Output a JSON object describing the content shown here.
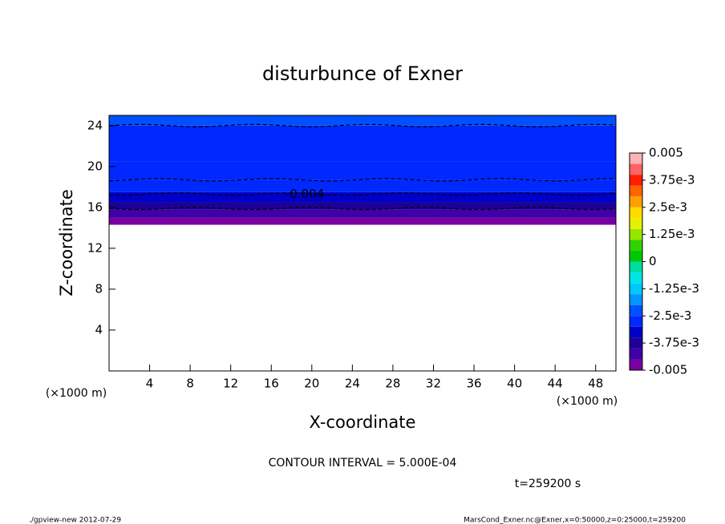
{
  "chart_data": {
    "type": "contour",
    "title": "disturbunce of Exner",
    "x_label": "X-coordinate",
    "y_label": "Z-coordinate",
    "x_unit": "(×1000 m)",
    "y_unit": "(×1000 m)",
    "xlim": [
      0,
      50
    ],
    "xticks": [
      4,
      8,
      12,
      16,
      20,
      24,
      28,
      32,
      36,
      40,
      44,
      48
    ],
    "ylim": [
      0,
      25
    ],
    "yticks": [
      4,
      8,
      12,
      16,
      20,
      24
    ],
    "z": [
      14.3,
      15,
      15.8,
      16.5,
      17.5,
      18.7,
      20.5,
      24
    ],
    "values": [
      -0.0048,
      -0.0043,
      -0.0038,
      -0.0033,
      -0.0029,
      -0.0027,
      -0.0026,
      -0.0024
    ],
    "contour_levels": [
      -0.0045,
      -0.004,
      -0.0035,
      -0.0025
    ],
    "contour_z": [
      15.9,
      17.3,
      18.7,
      24
    ],
    "contour_label": "-0.004",
    "colorbar_lim": [
      -0.005,
      0.005
    ],
    "colorbar_colors": [
      "#7800a0",
      "#4000a8",
      "#1e0096",
      "#0000c8",
      "#0028ff",
      "#0050ff",
      "#0096ff",
      "#00c8ff",
      "#00e6e6",
      "#00dca0",
      "#00c800",
      "#32d200",
      "#96e600",
      "#e6f000",
      "#ffdc00",
      "#ffa000",
      "#ff6400",
      "#ff1e00",
      "#ff6464",
      "#ffb4b4"
    ],
    "colorbar_ticks": [
      -0.005,
      {
        "value": -0.00375,
        "label": "-3.75e-3"
      },
      {
        "value": -0.0025,
        "label": "-2.5e-3"
      },
      {
        "value": -0.00125,
        "label": "-1.25e-3"
      },
      0,
      {
        "value": 0.00125,
        "label": "1.25e-3"
      },
      {
        "value": 0.0025,
        "label": "2.5e-3"
      },
      {
        "value": 0.00375,
        "label": "3.75e-3"
      },
      0.005
    ],
    "contour_interval": "CONTOUR INTERVAL = 5.000E-04",
    "time": "t=259200 s",
    "footer_left": "./gpview-new  2012-07-29",
    "footer_right": "MarsCond_Exner.nc@Exner,x=0:50000,z=0:25000,t=259200"
  }
}
